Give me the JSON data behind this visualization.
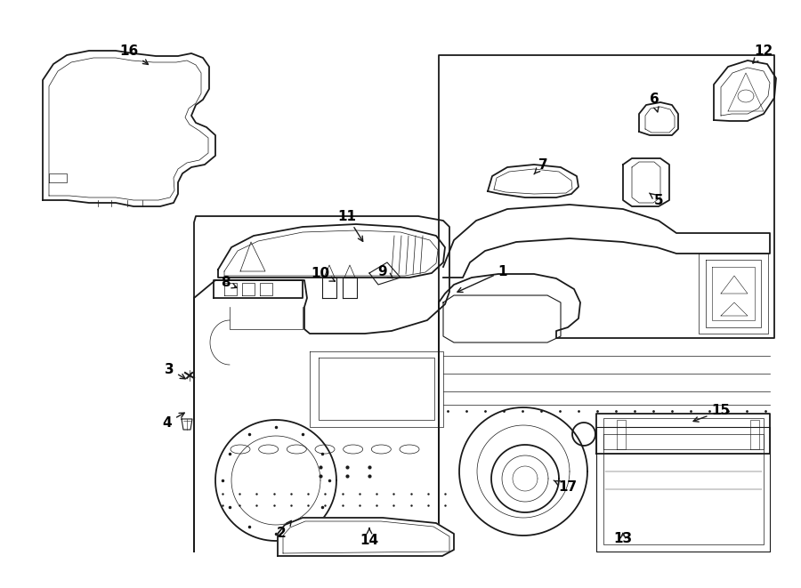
{
  "bg_color": "#ffffff",
  "line_color": "#1a1a1a",
  "label_color": "#000000",
  "lw_main": 1.3,
  "lw_thin": 0.8,
  "lw_detail": 0.5,
  "figsize": [
    9.0,
    6.61
  ],
  "dpi": 100,
  "xlim": [
    0,
    900
  ],
  "ylim": [
    0,
    661
  ]
}
